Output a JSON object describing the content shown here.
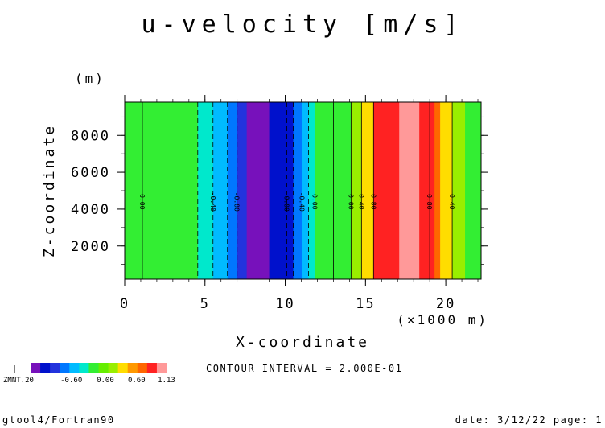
{
  "chart_data": {
    "type": "heatmap",
    "title": "u-velocity [m/s]",
    "xlabel": "X-coordinate",
    "ylabel": "Z-coordinate",
    "x_unit": "(×1000 m)",
    "y_unit": "(m)",
    "xlim": [
      0,
      22.2
    ],
    "ylim": [
      200,
      9800
    ],
    "x_ticks": [
      0,
      5,
      10,
      15,
      20
    ],
    "y_ticks": [
      2000,
      4000,
      6000,
      8000
    ],
    "bands": [
      {
        "x0": 0.0,
        "x1": 4.55,
        "color": "#33ee33"
      },
      {
        "x0": 4.55,
        "x1": 5.5,
        "color": "#00e8cc"
      },
      {
        "x0": 5.5,
        "x1": 6.4,
        "color": "#00bbff"
      },
      {
        "x0": 6.4,
        "x1": 7.0,
        "color": "#0077ff"
      },
      {
        "x0": 7.0,
        "x1": 7.6,
        "color": "#2233dd"
      },
      {
        "x0": 7.6,
        "x1": 9.0,
        "color": "#7711bb"
      },
      {
        "x0": 9.0,
        "x1": 10.5,
        "color": "#0011cc"
      },
      {
        "x0": 10.5,
        "x1": 11.05,
        "color": "#0077ff"
      },
      {
        "x0": 11.05,
        "x1": 11.45,
        "color": "#00bbff"
      },
      {
        "x0": 11.45,
        "x1": 11.85,
        "color": "#00e8cc"
      },
      {
        "x0": 11.85,
        "x1": 14.1,
        "color": "#33ee33"
      },
      {
        "x0": 14.1,
        "x1": 14.75,
        "color": "#99ee00"
      },
      {
        "x0": 14.75,
        "x1": 15.5,
        "color": "#ffdd00"
      },
      {
        "x0": 15.5,
        "x1": 17.1,
        "color": "#ff2222"
      },
      {
        "x0": 17.1,
        "x1": 18.35,
        "color": "#ff9999"
      },
      {
        "x0": 18.35,
        "x1": 19.3,
        "color": "#ff2222"
      },
      {
        "x0": 19.3,
        "x1": 19.65,
        "color": "#ff6600"
      },
      {
        "x0": 19.65,
        "x1": 20.4,
        "color": "#ffdd00"
      },
      {
        "x0": 20.4,
        "x1": 21.2,
        "color": "#99ee00"
      },
      {
        "x0": 21.2,
        "x1": 22.2,
        "color": "#33ee33"
      }
    ],
    "contours": [
      {
        "x": 1.1,
        "label": "0.00",
        "dashed": false
      },
      {
        "x": 4.55,
        "label": "",
        "dashed": true
      },
      {
        "x": 5.5,
        "label": "-0.40",
        "dashed": true
      },
      {
        "x": 6.4,
        "label": "",
        "dashed": true
      },
      {
        "x": 7.0,
        "label": "-0.80",
        "dashed": true
      },
      {
        "x": 10.1,
        "label": "-0.80",
        "dashed": true
      },
      {
        "x": 10.5,
        "label": "",
        "dashed": true
      },
      {
        "x": 11.05,
        "label": "-0.40",
        "dashed": true
      },
      {
        "x": 11.45,
        "label": "",
        "dashed": true
      },
      {
        "x": 11.85,
        "label": "0.00",
        "dashed": false
      },
      {
        "x": 13.0,
        "label": "",
        "dashed": false
      },
      {
        "x": 14.1,
        "label": "0.00",
        "dashed": false
      },
      {
        "x": 14.75,
        "label": "0.40",
        "dashed": false
      },
      {
        "x": 15.5,
        "label": "0.80",
        "dashed": false
      },
      {
        "x": 19.0,
        "label": "0.80",
        "dashed": false
      },
      {
        "x": 20.4,
        "label": "0.40",
        "dashed": false
      }
    ],
    "contour_label_y": 4400,
    "legend": {
      "colors": [
        "#7711bb",
        "#0011cc",
        "#2233dd",
        "#0077ff",
        "#00bbff",
        "#00e8cc",
        "#33ee33",
        "#66ee00",
        "#99ee00",
        "#ffdd00",
        "#ff9900",
        "#ff6600",
        "#ff2222",
        "#ff9999"
      ],
      "min_label": "ZMNT.20",
      "tick_labels": [
        "-0.60",
        "0.00",
        "0.60",
        "1.13"
      ],
      "tick_fracs": [
        0.3,
        0.55,
        0.78,
        1.0
      ]
    },
    "contour_interval_text": "CONTOUR INTERVAL = 2.000E-01"
  },
  "footer": {
    "left": "gtool4/Fortran90",
    "right": "date: 3/12/22 page: 1"
  }
}
